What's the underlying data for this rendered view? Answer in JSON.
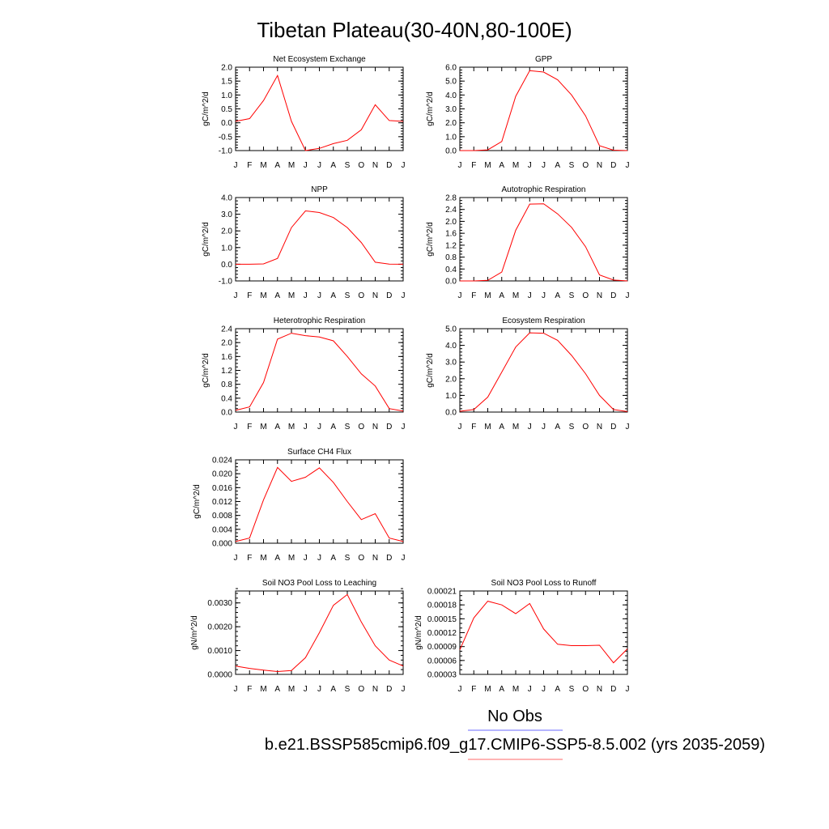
{
  "title": "Tibetan Plateau(30-40N,80-100E)",
  "months": [
    "J",
    "F",
    "M",
    "A",
    "M",
    "J",
    "J",
    "A",
    "S",
    "O",
    "N",
    "D",
    "J"
  ],
  "series_color": "#ff0000",
  "legend": {
    "obs_label": "No Obs",
    "obs_color": "#6a6aff",
    "model_label": "b.e21.BSSP585cmip6.f09_g17.CMIP6-SSP5-8.5.002 (yrs 2035-2059)",
    "model_color": "#ff6a6a"
  },
  "chart_data": [
    {
      "type": "line",
      "title": "Net Ecosystem Exchange",
      "ylabel": "gC/m^2/d",
      "ylim": [
        -1.0,
        2.0
      ],
      "yticks": [
        "2.0",
        "1.5",
        "1.0",
        "0.5",
        "0.0",
        "-0.5",
        "-1.0"
      ],
      "yminor": 0.1,
      "values": [
        0.05,
        0.15,
        0.8,
        1.7,
        0.05,
        -1.0,
        -0.92,
        -0.75,
        -0.63,
        -0.25,
        0.65,
        0.08,
        0.05
      ]
    },
    {
      "type": "line",
      "title": "GPP",
      "ylabel": "gC/m^2/d",
      "ylim": [
        0.0,
        6.0
      ],
      "yticks": [
        "6.0",
        "5.0",
        "4.0",
        "3.0",
        "2.0",
        "1.0",
        "0.0"
      ],
      "yminor": 0.2,
      "values": [
        0.0,
        0.0,
        0.05,
        0.65,
        3.9,
        5.75,
        5.65,
        5.1,
        4.0,
        2.5,
        0.35,
        0.03,
        0.0
      ]
    },
    {
      "type": "line",
      "title": "NPP",
      "ylabel": "gC/m^2/d",
      "ylim": [
        -1.0,
        4.0
      ],
      "yticks": [
        "4.0",
        "3.0",
        "2.0",
        "1.0",
        "0.0",
        "-1.0"
      ],
      "yminor": 0.2,
      "values": [
        0.0,
        0.0,
        0.02,
        0.35,
        2.2,
        3.2,
        3.1,
        2.8,
        2.2,
        1.3,
        0.12,
        0.01,
        0.0
      ]
    },
    {
      "type": "line",
      "title": "Autotrophic Respiration",
      "ylabel": "gC/m^2/d",
      "ylim": [
        0.0,
        2.8
      ],
      "yticks": [
        "2.8",
        "2.4",
        "2.0",
        "1.6",
        "1.2",
        "0.8",
        "0.4",
        "0.0"
      ],
      "yminor": 0.1,
      "values": [
        0.0,
        0.0,
        0.02,
        0.3,
        1.7,
        2.58,
        2.59,
        2.25,
        1.8,
        1.15,
        0.2,
        0.03,
        0.0
      ]
    },
    {
      "type": "line",
      "title": "Heterotrophic Respiration",
      "ylabel": "gC/m^2/d",
      "ylim": [
        0.0,
        2.4
      ],
      "yticks": [
        "2.4",
        "2.0",
        "1.6",
        "1.2",
        "0.8",
        "0.4",
        "0.0"
      ],
      "yminor": 0.1,
      "values": [
        0.05,
        0.15,
        0.85,
        2.1,
        2.27,
        2.2,
        2.16,
        2.05,
        1.6,
        1.1,
        0.75,
        0.1,
        0.03
      ]
    },
    {
      "type": "line",
      "title": "Ecosystem Respiration",
      "ylabel": "gC/m^2/d",
      "ylim": [
        0.0,
        5.0
      ],
      "yticks": [
        "5.0",
        "4.0",
        "3.0",
        "2.0",
        "1.0",
        "0.0"
      ],
      "yminor": 0.2,
      "values": [
        0.05,
        0.15,
        0.9,
        2.4,
        3.9,
        4.75,
        4.73,
        4.3,
        3.4,
        2.3,
        1.0,
        0.15,
        0.03
      ]
    },
    {
      "type": "line",
      "title": "Surface CH4 Flux",
      "ylabel": "gC/m^2/d",
      "ylim": [
        0.0,
        0.024
      ],
      "yticks": [
        "0.024",
        "0.020",
        "0.016",
        "0.012",
        "0.008",
        "0.004",
        "0.000"
      ],
      "yminor": 0.001,
      "values": [
        0.0005,
        0.0015,
        0.0125,
        0.0218,
        0.0178,
        0.019,
        0.0217,
        0.0175,
        0.012,
        0.0068,
        0.0085,
        0.0015,
        0.0005
      ]
    },
    {
      "type": "line",
      "title": "Soil NO3 Pool Loss to Leaching",
      "ylabel": "gN/m^2/d",
      "ylim": [
        0.0,
        0.0035
      ],
      "yticks": [
        "0.0030",
        "0.0020",
        "0.0010",
        "0.0000"
      ],
      "ytick_values": [
        0.003,
        0.002,
        0.001,
        0.0
      ],
      "yminor": 0.0002,
      "values": [
        0.00035,
        0.00025,
        0.00018,
        0.00012,
        0.00016,
        0.0007,
        0.00175,
        0.0029,
        0.00335,
        0.0022,
        0.0012,
        0.0006,
        0.00035
      ]
    },
    {
      "type": "line",
      "title": "Soil NO3 Pool Loss to Runoff",
      "ylabel": "gN/m^2/d",
      "ylim": [
        3e-05,
        0.00021
      ],
      "yticks": [
        "0.00021",
        "0.00018",
        "0.00015",
        "0.00012",
        "0.00009",
        "0.00006",
        "0.00003"
      ],
      "yminor": 1e-05,
      "values": [
        8.3e-05,
        0.000152,
        0.000188,
        0.00018,
        0.000161,
        0.000183,
        0.000128,
        9.5e-05,
        9.2e-05,
        9.2e-05,
        9.3e-05,
        5.5e-05,
        8.5e-05
      ]
    }
  ]
}
